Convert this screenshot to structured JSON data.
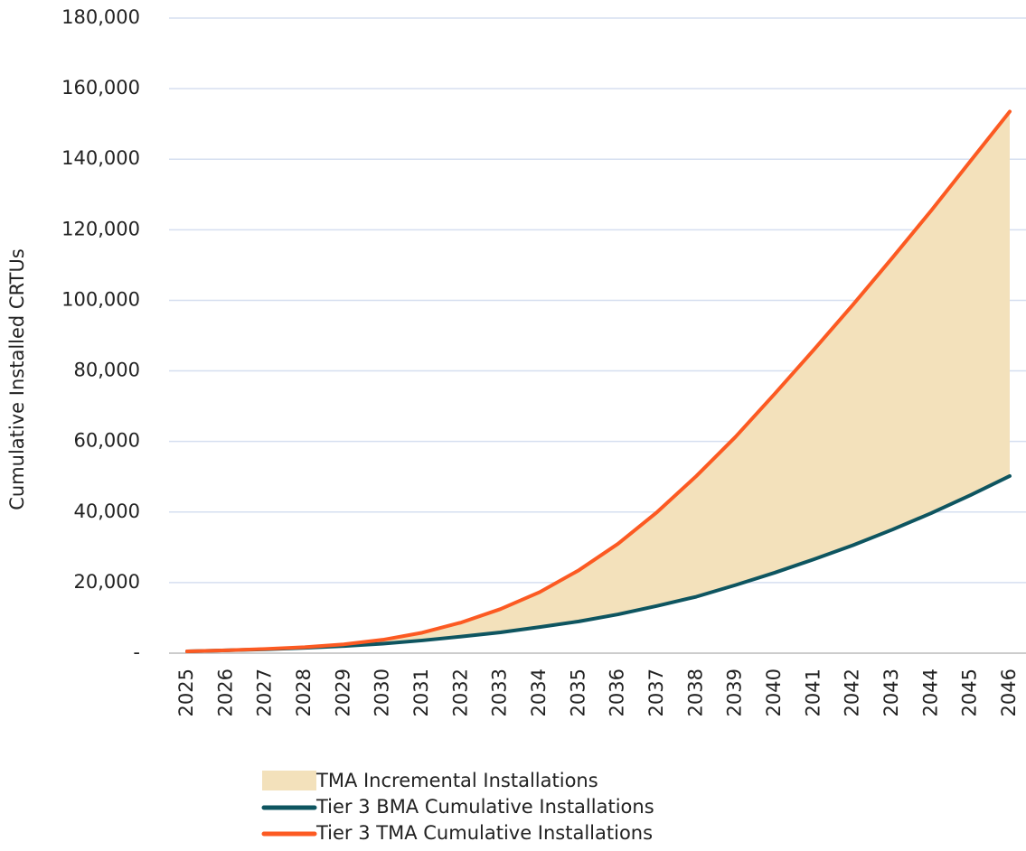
{
  "chart_data": {
    "type": "line",
    "y_label": "Cumulative Installed CRTUs",
    "categories": [
      "2025",
      "2026",
      "2027",
      "2028",
      "2029",
      "2030",
      "2031",
      "2032",
      "2033",
      "2034",
      "2035",
      "2036",
      "2037",
      "2038",
      "2039",
      "2040",
      "2041",
      "2042",
      "2043",
      "2044",
      "2045",
      "2046"
    ],
    "area": {
      "name": "TMA Incremental Installations",
      "color": "#f3e1bb",
      "base": 0,
      "values": [
        0,
        0,
        100,
        200,
        500,
        1100,
        2200,
        4000,
        6600,
        9900,
        14500,
        20000,
        26600,
        34200,
        42000,
        50700,
        59400,
        68200,
        77000,
        85800,
        94700,
        103300
      ]
    },
    "series": [
      {
        "name": "Tier 3 BMA Cumulative Installations",
        "color": "#0e5560",
        "values": [
          500,
          800,
          1100,
          1500,
          2000,
          2700,
          3600,
          4700,
          5900,
          7400,
          9000,
          11000,
          13400,
          16000,
          19300,
          22800,
          26600,
          30600,
          35000,
          39700,
          44800,
          50200
        ]
      },
      {
        "name": "Tier 3 TMA Cumulative Installations",
        "color": "#fc5a22",
        "values": [
          500,
          800,
          1200,
          1700,
          2500,
          3800,
          5800,
          8700,
          12500,
          17300,
          23500,
          31000,
          40000,
          50200,
          61300,
          73500,
          86000,
          98800,
          112000,
          125500,
          139500,
          153500
        ]
      }
    ],
    "ylim": [
      0,
      180000
    ],
    "yticks": [
      {
        "value": 0,
        "label": "-"
      },
      {
        "value": 20000,
        "label": "20,000"
      },
      {
        "value": 40000,
        "label": "40,000"
      },
      {
        "value": 60000,
        "label": "60,000"
      },
      {
        "value": 80000,
        "label": "80,000"
      },
      {
        "value": 100000,
        "label": "100,000"
      },
      {
        "value": 120000,
        "label": "120,000"
      },
      {
        "value": 140000,
        "label": "140,000"
      },
      {
        "value": 160000,
        "label": "160,000"
      },
      {
        "value": 180000,
        "label": "180,000"
      }
    ],
    "grid": true
  }
}
